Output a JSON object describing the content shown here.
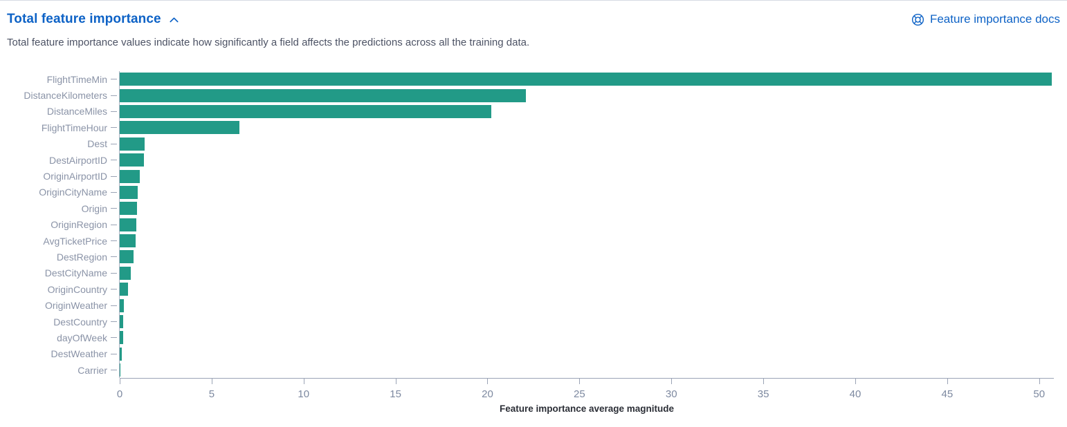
{
  "panel": {
    "title": "Total feature importance",
    "collapse_icon": "chevron-up-icon",
    "description": "Total feature importance values indicate how significantly a field affects the predictions across all the training data.",
    "docs_link_label": "Feature importance docs",
    "docs_link_icon": "lifebuoy-docs-icon"
  },
  "colors": {
    "accent_blue": "#0d62c6",
    "bar_teal": "#229a87",
    "axis_line": "#9aa3b5",
    "y_label": "#8a93a7",
    "x_label": "#7d89a0"
  },
  "chart_data": {
    "type": "bar",
    "orientation": "horizontal",
    "title": "",
    "xlabel": "Feature importance average magnitude",
    "ylabel": "",
    "xlim": [
      0,
      50.8
    ],
    "xticks": [
      0,
      5,
      10,
      15,
      20,
      25,
      30,
      35,
      40,
      45,
      50
    ],
    "grid": false,
    "legend": false,
    "categories": [
      "FlightTimeMin",
      "DistanceKilometers",
      "DistanceMiles",
      "FlightTimeHour",
      "Dest",
      "DestAirportID",
      "OriginAirportID",
      "OriginCityName",
      "Origin",
      "OriginRegion",
      "AvgTicketPrice",
      "DestRegion",
      "DestCityName",
      "OriginCountry",
      "OriginWeather",
      "DestCountry",
      "dayOfWeek",
      "DestWeather",
      "Carrier"
    ],
    "values": [
      50.7,
      22.1,
      20.2,
      6.5,
      1.37,
      1.3,
      1.1,
      0.98,
      0.95,
      0.89,
      0.85,
      0.74,
      0.6,
      0.45,
      0.22,
      0.19,
      0.17,
      0.12,
      0.04
    ]
  }
}
